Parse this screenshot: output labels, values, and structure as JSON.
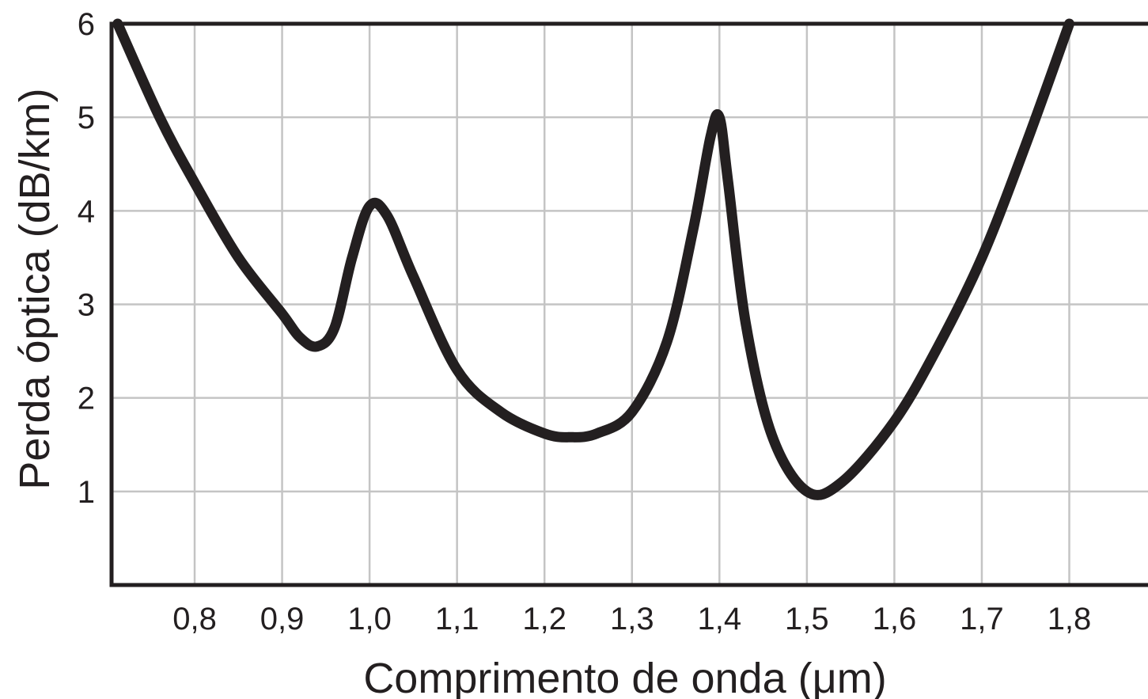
{
  "chart_data": {
    "type": "line",
    "xlabel": "Comprimento de onda (μm)",
    "ylabel": "Perda óptica (dB/km)",
    "xlim": [
      0.705,
      1.89
    ],
    "ylim": [
      0,
      6
    ],
    "x_ticks": [
      0.8,
      0.9,
      1.0,
      1.1,
      1.2,
      1.3,
      1.4,
      1.5,
      1.6,
      1.7,
      1.8
    ],
    "x_tick_labels": [
      "0,8",
      "0,9",
      "1,0",
      "1,1",
      "1,2",
      "1,3",
      "1,4",
      "1,5",
      "1,6",
      "1,7",
      "1,8"
    ],
    "y_ticks": [
      1,
      2,
      3,
      4,
      5,
      6
    ],
    "y_tick_labels": [
      "1",
      "2",
      "3",
      "4",
      "5",
      "6"
    ],
    "grid": true,
    "colors": {
      "curve": "#231f20",
      "grid": "#c4c4c4",
      "axis": "#231f20"
    },
    "series": [
      {
        "x": [
          0.712,
          0.76,
          0.8,
          0.85,
          0.9,
          0.92,
          0.94,
          0.96,
          0.98,
          1.0,
          1.02,
          1.05,
          1.1,
          1.15,
          1.2,
          1.23,
          1.26,
          1.3,
          1.34,
          1.37,
          1.39,
          1.4,
          1.41,
          1.43,
          1.46,
          1.5,
          1.54,
          1.6,
          1.65,
          1.7,
          1.75,
          1.8
        ],
        "y": [
          6.0,
          5.0,
          4.3,
          3.5,
          2.9,
          2.65,
          2.55,
          2.75,
          3.5,
          4.05,
          3.95,
          3.3,
          2.3,
          1.85,
          1.62,
          1.58,
          1.62,
          1.85,
          2.6,
          3.8,
          4.8,
          5.0,
          4.3,
          2.8,
          1.6,
          1.0,
          1.1,
          1.75,
          2.55,
          3.5,
          4.7,
          6.0
        ]
      }
    ]
  }
}
